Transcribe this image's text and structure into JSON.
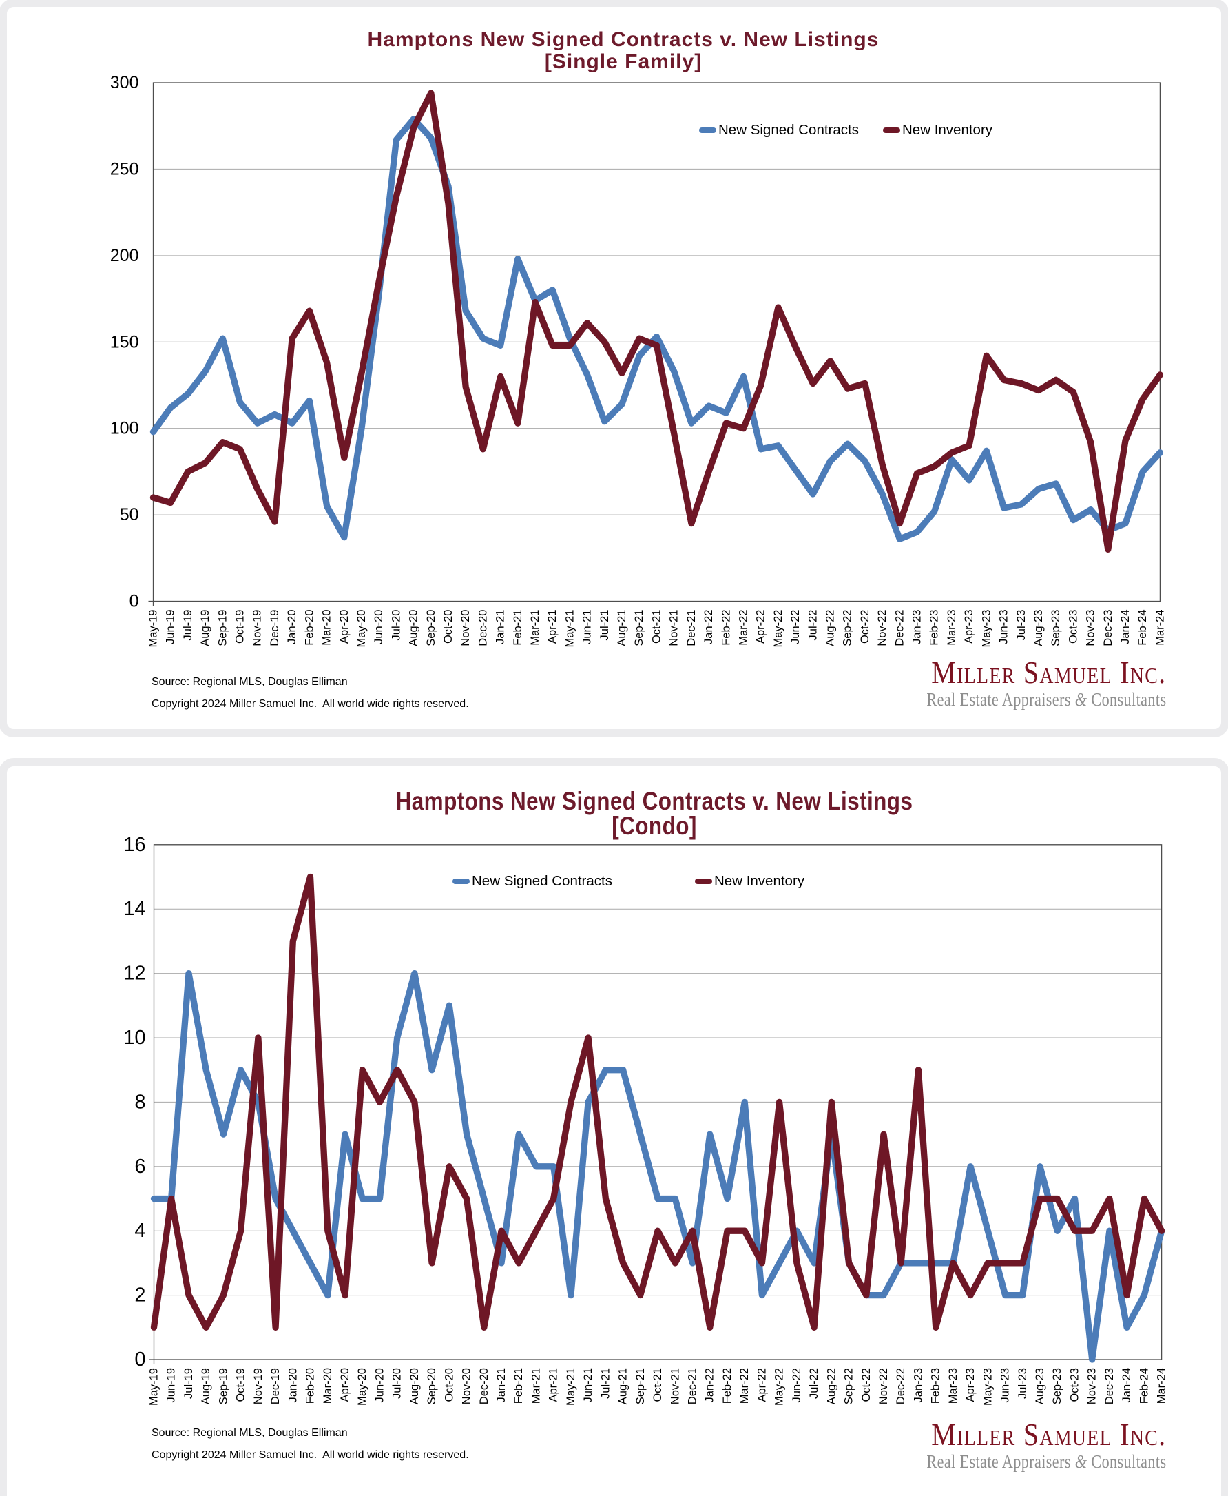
{
  "page": {
    "background": "#ffffff",
    "card_border_color": "#ebebed",
    "source_line": "Source: Regional MLS, Douglas Elliman",
    "copyright_line": "Copyright 2024 Miller Samuel Inc.  All world wide rights reserved.",
    "logo": {
      "name": "Miller Samuel Inc.",
      "tagline_pre": "Real Estate Appraisers ",
      "tagline_amp": "&",
      "tagline_post": " Consultants"
    }
  },
  "chart_data": [
    {
      "type": "line",
      "title": "Hamptons New Signed Contracts v. New Listings",
      "subtitle": "[Single Family]",
      "xlabel": "",
      "ylabel": "",
      "ylim": [
        0,
        300
      ],
      "ytick_step": 50,
      "y_ticks": [
        0,
        50,
        100,
        150,
        200,
        250,
        300
      ],
      "grid": true,
      "legend_position": "inside-top-right",
      "categories": [
        "May-19",
        "Jun-19",
        "Jul-19",
        "Aug-19",
        "Sep-19",
        "Oct-19",
        "Nov-19",
        "Dec-19",
        "Jan-20",
        "Feb-20",
        "Mar-20",
        "Apr-20",
        "May-20",
        "Jun-20",
        "Jul-20",
        "Aug-20",
        "Sep-20",
        "Oct-20",
        "Nov-20",
        "Dec-20",
        "Jan-21",
        "Feb-21",
        "Mar-21",
        "Apr-21",
        "May-21",
        "Jun-21",
        "Jul-21",
        "Aug-21",
        "Sep-21",
        "Oct-21",
        "Nov-21",
        "Dec-21",
        "Jan-22",
        "Feb-22",
        "Mar-22",
        "Apr-22",
        "May-22",
        "Jun-22",
        "Jul-22",
        "Aug-22",
        "Sep-22",
        "Oct-22",
        "Nov-22",
        "Dec-22",
        "Jan-23",
        "Feb-23",
        "Mar-23",
        "Apr-23",
        "May-23",
        "Jun-23",
        "Jul-23",
        "Aug-23",
        "Sep-23",
        "Oct-23",
        "Nov-23",
        "Dec-23",
        "Jan-24",
        "Feb-24",
        "Mar-24"
      ],
      "series": [
        {
          "name": "New Signed Contracts",
          "color": "#4C7CB8",
          "values": [
            98,
            112,
            120,
            133,
            152,
            115,
            103,
            108,
            103,
            116,
            55,
            37,
            100,
            178,
            267,
            279,
            268,
            240,
            168,
            152,
            148,
            198,
            174,
            180,
            152,
            131,
            104,
            114,
            142,
            153,
            133,
            103,
            113,
            109,
            130,
            88,
            90,
            76,
            62,
            81,
            91,
            81,
            62,
            36,
            40,
            52,
            82,
            70,
            87,
            54,
            56,
            65,
            68,
            47,
            53,
            41,
            45,
            75,
            86
          ]
        },
        {
          "name": "New Inventory",
          "color": "#6E1726",
          "values": [
            60,
            57,
            75,
            80,
            92,
            88,
            65,
            46,
            152,
            168,
            138,
            83,
            132,
            185,
            234,
            274,
            294,
            230,
            124,
            88,
            130,
            103,
            173,
            148,
            148,
            161,
            150,
            132,
            152,
            148,
            97,
            45,
            75,
            103,
            100,
            125,
            170,
            147,
            126,
            139,
            123,
            126,
            79,
            45,
            74,
            78,
            86,
            90,
            142,
            128,
            126,
            122,
            128,
            121,
            92,
            30,
            93,
            117,
            131
          ]
        }
      ]
    },
    {
      "type": "line",
      "title": "Hamptons New Signed Contracts v. New Listings",
      "subtitle": "[Condo]",
      "xlabel": "",
      "ylabel": "",
      "ylim": [
        0,
        16
      ],
      "ytick_step": 2,
      "y_ticks": [
        0,
        2,
        4,
        6,
        8,
        10,
        12,
        14,
        16
      ],
      "grid": true,
      "legend_position": "inside-top-center",
      "categories": [
        "May-19",
        "Jun-19",
        "Jul-19",
        "Aug-19",
        "Sep-19",
        "Oct-19",
        "Nov-19",
        "Dec-19",
        "Jan-20",
        "Feb-20",
        "Mar-20",
        "Apr-20",
        "May-20",
        "Jun-20",
        "Jul-20",
        "Aug-20",
        "Sep-20",
        "Oct-20",
        "Nov-20",
        "Dec-20",
        "Jan-21",
        "Feb-21",
        "Mar-21",
        "Apr-21",
        "May-21",
        "Jun-21",
        "Jul-21",
        "Aug-21",
        "Sep-21",
        "Oct-21",
        "Nov-21",
        "Dec-21",
        "Jan-22",
        "Feb-22",
        "Mar-22",
        "Apr-22",
        "May-22",
        "Jun-22",
        "Jul-22",
        "Aug-22",
        "Sep-22",
        "Oct-22",
        "Nov-22",
        "Dec-22",
        "Jan-23",
        "Feb-23",
        "Mar-23",
        "Apr-23",
        "May-23",
        "Jun-23",
        "Jul-23",
        "Aug-23",
        "Sep-23",
        "Oct-23",
        "Nov-23",
        "Dec-23",
        "Jan-24",
        "Feb-24",
        "Mar-24"
      ],
      "series": [
        {
          "name": "New Signed Contracts",
          "color": "#4C7CB8",
          "values": [
            5,
            5,
            12,
            9,
            7,
            9,
            8,
            5,
            4,
            3,
            2,
            7,
            5,
            5,
            10,
            12,
            9,
            11,
            7,
            5,
            3,
            7,
            6,
            6,
            2,
            8,
            9,
            9,
            7,
            5,
            5,
            3,
            7,
            5,
            8,
            2,
            3,
            4,
            3,
            7,
            3,
            2,
            2,
            3,
            3,
            3,
            3,
            6,
            4,
            2,
            2,
            6,
            4,
            5,
            0,
            4,
            1,
            2,
            4
          ]
        },
        {
          "name": "New Inventory",
          "color": "#6E1726",
          "values": [
            1,
            5,
            2,
            1,
            2,
            4,
            10,
            1,
            13,
            15,
            4,
            2,
            9,
            8,
            9,
            8,
            3,
            6,
            5,
            1,
            4,
            3,
            4,
            5,
            8,
            10,
            5,
            3,
            2,
            4,
            3,
            4,
            1,
            4,
            4,
            3,
            8,
            3,
            1,
            8,
            3,
            2,
            7,
            3,
            9,
            1,
            3,
            2,
            3,
            3,
            3,
            5,
            5,
            4,
            4,
            5,
            2,
            5,
            4
          ]
        }
      ]
    }
  ]
}
